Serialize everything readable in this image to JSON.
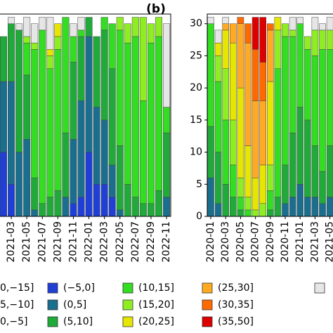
{
  "chart_data": [
    {
      "type": "stacked_bar",
      "categories": [
        null,
        "2021-03",
        null,
        "2021-05",
        null,
        "2021-07",
        null,
        "2021-09",
        null,
        "2021-11",
        null,
        "2022-01",
        null,
        "2022-03",
        null,
        "2022-05",
        null,
        "2022-07",
        null,
        "2022-09",
        null,
        "2022-11"
      ],
      "ylim": [
        0,
        31.5
      ],
      "series": [
        {
          "color": "#1f3fd6",
          "values": [
            10,
            5,
            0,
            0,
            0,
            0,
            0,
            0,
            0,
            2,
            3,
            10,
            5,
            5,
            3,
            0,
            0,
            0,
            0,
            0,
            0,
            0
          ]
        },
        {
          "color": "#1a6e8e",
          "values": [
            11,
            16,
            10,
            12,
            1,
            0,
            0,
            0,
            3,
            10,
            15,
            18,
            12,
            10,
            5,
            1,
            0,
            0,
            0,
            0,
            0,
            3
          ]
        },
        {
          "color": "#20aa3a",
          "values": [
            7,
            9,
            19,
            10,
            5,
            2,
            3,
            4,
            10,
            12,
            10,
            3,
            11,
            14,
            15,
            10,
            5,
            3,
            2,
            2,
            4,
            10
          ]
        },
        {
          "color": "#33dd22",
          "values": [
            0,
            0,
            0,
            5,
            20,
            27,
            20,
            22,
            18,
            4,
            1,
            0,
            0,
            2,
            7,
            18,
            22,
            25,
            16,
            25,
            24,
            4
          ]
        },
        {
          "color": "#8fee22",
          "values": [
            0,
            0,
            0,
            1,
            1,
            0,
            2,
            2,
            0,
            0,
            0,
            0,
            0,
            0,
            0,
            2,
            3,
            3,
            13,
            3,
            3,
            0
          ]
        },
        {
          "color": "#e6e600",
          "values": [
            0,
            0,
            0,
            0,
            0,
            0,
            1,
            2,
            0,
            0,
            0,
            0,
            0,
            0,
            0,
            0,
            0,
            0,
            0,
            0,
            0,
            0
          ]
        },
        {
          "color": "#e6e6e6",
          "values": [
            0,
            1,
            1,
            3,
            3,
            2,
            5,
            0,
            0,
            2,
            2,
            0,
            0,
            0,
            0,
            0,
            0,
            0,
            0,
            0,
            0,
            13
          ]
        }
      ]
    },
    {
      "type": "stacked_bar",
      "title": "(b)",
      "categories": [
        "2020-01",
        null,
        "2020-03",
        null,
        "2020-05",
        null,
        "2020-07",
        null,
        "2020-09",
        null,
        "2020-11",
        null,
        "2021-01",
        null,
        "2021-03",
        null,
        "2021-05"
      ],
      "ylim": [
        0,
        31.5
      ],
      "yticks": [
        0,
        5,
        10,
        15,
        20,
        25,
        30
      ],
      "series": [
        {
          "color": "#1a6e8e",
          "values": [
            6,
            2,
            0,
            0,
            0,
            0,
            0,
            0,
            0,
            0,
            2,
            3,
            5,
            3,
            3,
            2,
            3
          ]
        },
        {
          "color": "#20aa3a",
          "values": [
            8,
            8,
            5,
            3,
            1,
            0,
            0,
            0,
            1,
            3,
            6,
            10,
            12,
            12,
            8,
            5,
            8
          ]
        },
        {
          "color": "#33dd22",
          "values": [
            16,
            11,
            10,
            5,
            2,
            1,
            0,
            0,
            3,
            20,
            20,
            15,
            13,
            11,
            14,
            19,
            15
          ]
        },
        {
          "color": "#8fee22",
          "values": [
            0,
            4,
            8,
            7,
            3,
            2,
            1,
            2,
            4,
            6,
            2,
            1,
            0,
            2,
            4,
            3,
            3
          ]
        },
        {
          "color": "#e6e600",
          "values": [
            0,
            2,
            6,
            12,
            14,
            8,
            5,
            6,
            13,
            2,
            0,
            0,
            0,
            0,
            0,
            0,
            0
          ]
        },
        {
          "color": "#ffaa22",
          "values": [
            0,
            0,
            1,
            3,
            10,
            16,
            12,
            10,
            8,
            0,
            0,
            0,
            0,
            0,
            0,
            0,
            0
          ]
        },
        {
          "color": "#ff6a00",
          "values": [
            0,
            0,
            0,
            0,
            1,
            3,
            8,
            6,
            1,
            0,
            0,
            0,
            0,
            0,
            0,
            0,
            0
          ]
        },
        {
          "color": "#dd0000",
          "values": [
            0,
            0,
            0,
            0,
            0,
            0,
            5,
            7,
            0,
            0,
            0,
            0,
            0,
            0,
            0,
            0,
            0
          ]
        },
        {
          "color": "#e6e6e6",
          "values": [
            1,
            2,
            1,
            0,
            0,
            0,
            0,
            0,
            0,
            0,
            0,
            2,
            1,
            0,
            2,
            1,
            2
          ]
        }
      ]
    }
  ],
  "legend": [
    {
      "name": "0,−15]"
    },
    {
      "name": "5,−10]"
    },
    {
      "name": "0,−5]"
    },
    {
      "name": "(−5,0]",
      "color": "#1f3fd6"
    },
    {
      "name": "(0,5]",
      "color": "#1a6e8e"
    },
    {
      "name": "(5,10]",
      "color": "#20aa3a"
    },
    {
      "name": "(10,15]",
      "color": "#33dd22"
    },
    {
      "name": "(15,20]",
      "color": "#8fee22"
    },
    {
      "name": "(20,25]",
      "color": "#e6e600"
    },
    {
      "name": "(25,30]",
      "color": "#ffaa22"
    },
    {
      "name": "(30,35]",
      "color": "#ff6a00"
    },
    {
      "name": "(35,50]",
      "color": "#dd0000"
    },
    {
      "color": "#e6e6e6"
    }
  ]
}
